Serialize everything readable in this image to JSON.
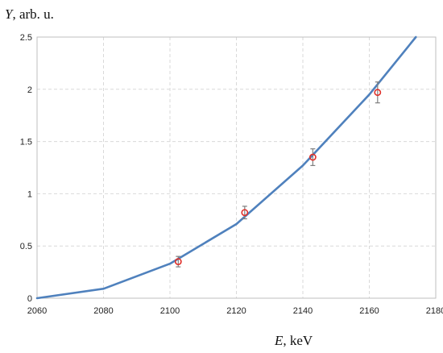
{
  "chart_data": {
    "type": "line",
    "title": "",
    "ylabel": {
      "var": "Y",
      "rest": ", arb. u."
    },
    "xlabel": {
      "var": "E",
      "rest": ", keV"
    },
    "xlim": [
      2060,
      2180
    ],
    "ylim": [
      0,
      2.5
    ],
    "x_ticks": [
      2060,
      2080,
      2100,
      2120,
      2140,
      2160,
      2180
    ],
    "y_ticks": [
      "0",
      "0.5",
      "1",
      "1.5",
      "2",
      "2.5"
    ],
    "y_tick_values": [
      0,
      0.5,
      1,
      1.5,
      2,
      2.5
    ],
    "grid": true,
    "legend": "none",
    "series": [
      {
        "kind": "line",
        "color": "#4f81bd",
        "x": [
          2060,
          2080,
          2100,
          2120,
          2140,
          2160,
          2174
        ],
        "y": [
          0.0,
          0.09,
          0.33,
          0.71,
          1.27,
          1.95,
          2.5
        ]
      },
      {
        "kind": "scatter",
        "color": "#e0302a",
        "x": [
          2102.5,
          2122.5,
          2143,
          2162.5
        ],
        "y": [
          0.35,
          0.82,
          1.35,
          1.97
        ],
        "yerr": [
          0.05,
          0.06,
          0.08,
          0.1
        ]
      }
    ]
  }
}
